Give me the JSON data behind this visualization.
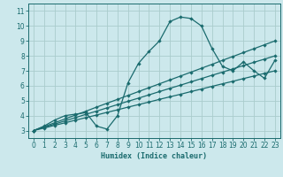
{
  "title": "",
  "xlabel": "Humidex (Indice chaleur)",
  "bg_color": "#cce8ec",
  "grid_color": "#aacccc",
  "line_color": "#1a6b6e",
  "xlim": [
    -0.5,
    23.5
  ],
  "ylim": [
    2.5,
    11.5
  ],
  "xticks": [
    0,
    1,
    2,
    3,
    4,
    5,
    6,
    7,
    8,
    9,
    10,
    11,
    12,
    13,
    14,
    15,
    16,
    17,
    18,
    19,
    20,
    21,
    22,
    23
  ],
  "yticks": [
    3,
    4,
    5,
    6,
    7,
    8,
    9,
    10,
    11
  ],
  "line1_x": [
    0,
    1,
    2,
    3,
    4,
    5,
    6,
    7,
    8,
    9,
    10,
    11,
    12,
    13,
    14,
    15,
    16,
    17,
    18,
    19,
    20,
    21,
    22,
    23
  ],
  "line1_y": [
    3.0,
    3.3,
    3.7,
    4.0,
    4.1,
    4.2,
    3.3,
    3.1,
    4.0,
    6.2,
    7.5,
    8.3,
    9.0,
    10.3,
    10.6,
    10.5,
    10.0,
    8.5,
    7.3,
    7.0,
    7.6,
    7.0,
    6.5,
    7.7
  ],
  "line2_x": [
    0,
    1,
    2,
    3,
    4,
    5,
    6,
    7,
    8,
    9,
    10,
    11,
    12,
    13,
    14,
    15,
    16,
    17,
    18,
    19,
    20,
    21,
    22,
    23
  ],
  "line2_y": [
    3.0,
    3.17,
    3.35,
    3.52,
    3.7,
    3.87,
    4.04,
    4.22,
    4.39,
    4.57,
    4.74,
    4.91,
    5.09,
    5.26,
    5.43,
    5.61,
    5.78,
    5.96,
    6.13,
    6.3,
    6.48,
    6.65,
    6.83,
    7.0
  ],
  "line3_x": [
    0,
    1,
    2,
    3,
    4,
    5,
    6,
    7,
    8,
    9,
    10,
    11,
    12,
    13,
    14,
    15,
    16,
    17,
    18,
    19,
    20,
    21,
    22,
    23
  ],
  "line3_y": [
    3.0,
    3.22,
    3.43,
    3.65,
    3.87,
    4.09,
    4.3,
    4.52,
    4.74,
    4.96,
    5.17,
    5.39,
    5.61,
    5.83,
    6.04,
    6.26,
    6.48,
    6.7,
    6.91,
    7.13,
    7.35,
    7.57,
    7.78,
    8.0
  ],
  "line4_x": [
    0,
    1,
    2,
    3,
    4,
    5,
    6,
    7,
    8,
    9,
    10,
    11,
    12,
    13,
    14,
    15,
    16,
    17,
    18,
    19,
    20,
    21,
    22,
    23
  ],
  "line4_y": [
    3.0,
    3.26,
    3.52,
    3.78,
    4.04,
    4.3,
    4.57,
    4.83,
    5.09,
    5.35,
    5.61,
    5.87,
    6.13,
    6.39,
    6.65,
    6.91,
    7.17,
    7.43,
    7.7,
    7.96,
    8.22,
    8.48,
    8.74,
    9.0
  ]
}
